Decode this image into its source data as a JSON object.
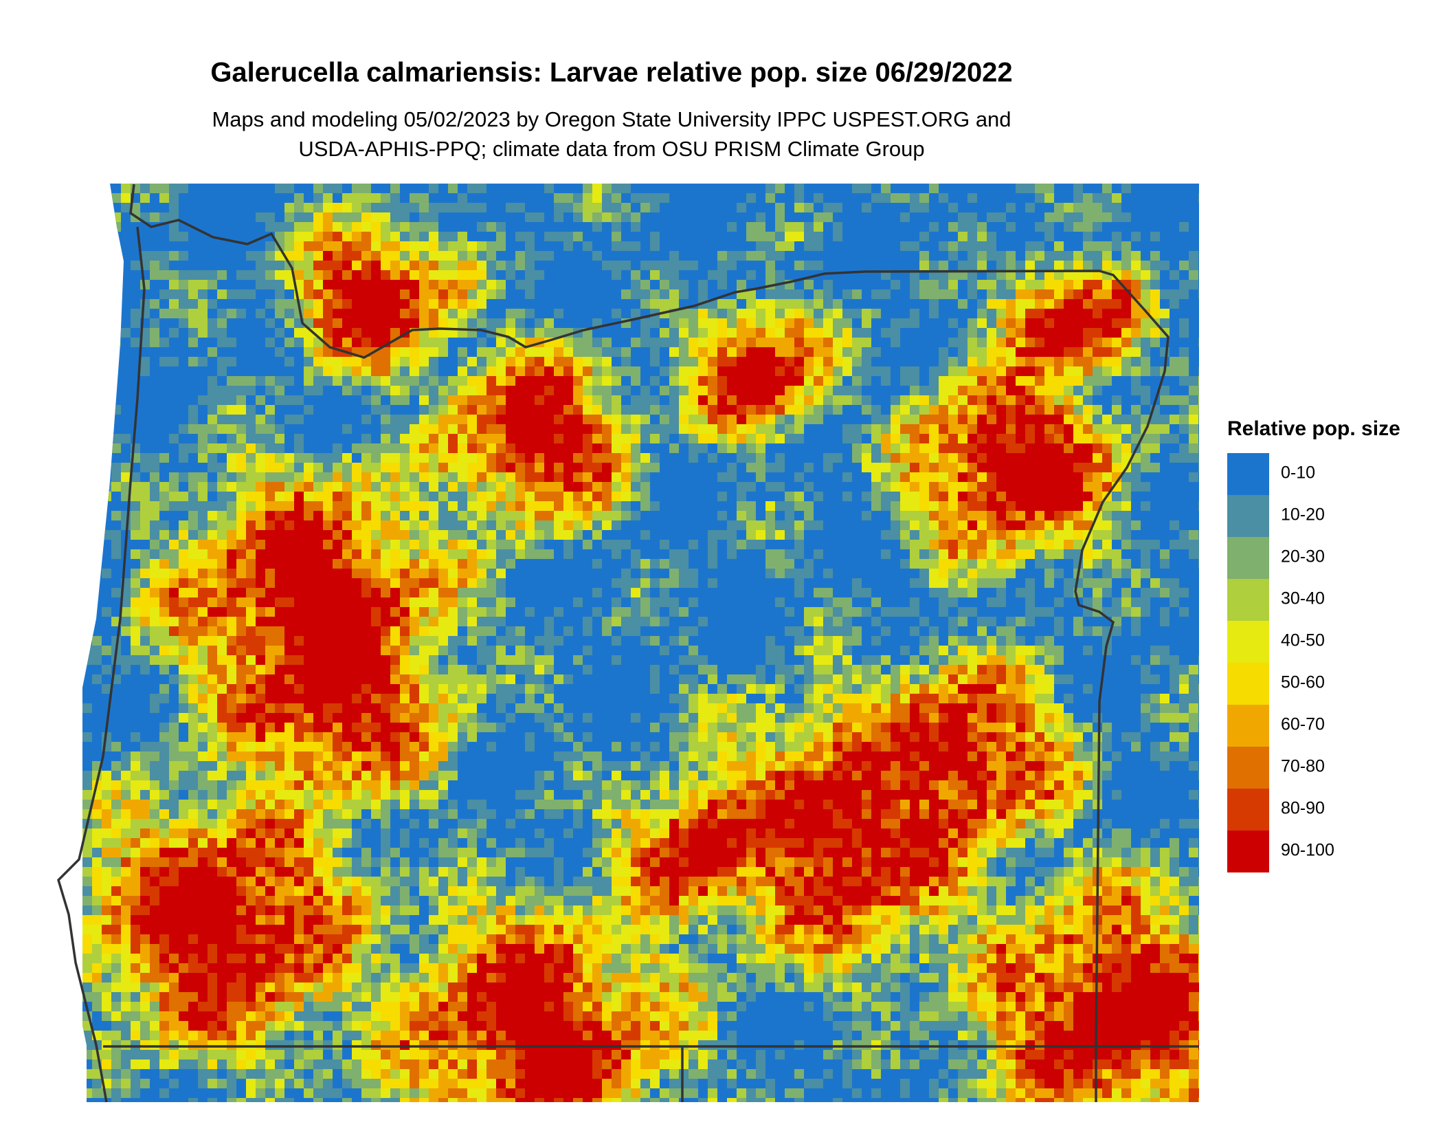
{
  "header": {
    "title": "Galerucella calmariensis: Larvae relative pop. size 06/29/2022",
    "subtitle_lines": [
      "Maps and modeling 05/02/2023 by Oregon State University IPPC USPEST.ORG and",
      "USDA-APHIS-PPQ; climate data from OSU PRISM Climate Group"
    ]
  },
  "legend": {
    "title": "Relative pop. size",
    "items": [
      {
        "label": "0-10",
        "color": "#1c75cd"
      },
      {
        "label": "10-20",
        "color": "#4a8fa3"
      },
      {
        "label": "20-30",
        "color": "#7fb06e"
      },
      {
        "label": "30-40",
        "color": "#b0cf3c"
      },
      {
        "label": "40-50",
        "color": "#e6ea10"
      },
      {
        "label": "50-60",
        "color": "#f7dc00"
      },
      {
        "label": "60-70",
        "color": "#f0a800"
      },
      {
        "label": "70-80",
        "color": "#e07000"
      },
      {
        "label": "80-90",
        "color": "#d63a00"
      },
      {
        "label": "90-100",
        "color": "#cc0000"
      }
    ]
  }
}
